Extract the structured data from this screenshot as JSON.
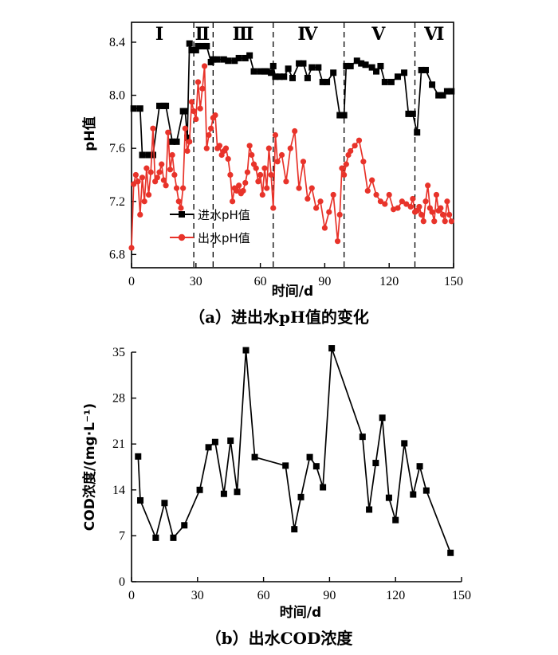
{
  "chart_data": [
    {
      "type": "line",
      "title": "",
      "caption": "（a）进出水pH值的变化",
      "xlabel": "时间/d",
      "ylabel": "pH值",
      "xlim": [
        0,
        150
      ],
      "ylim": [
        6.7,
        8.55
      ],
      "xticks": [
        0,
        30,
        60,
        90,
        120,
        150
      ],
      "yticks": [
        6.8,
        7.2,
        7.6,
        8.0,
        8.4
      ],
      "ytick_labels": [
        "6.8",
        "7.2",
        "7.6",
        "8.0",
        "8.4"
      ],
      "stages": [
        {
          "label": "Ⅰ",
          "center": 13
        },
        {
          "label": "Ⅱ",
          "center": 33
        },
        {
          "label": "Ⅲ",
          "center": 52
        },
        {
          "label": "Ⅳ",
          "center": 82
        },
        {
          "label": "Ⅴ",
          "center": 115
        },
        {
          "label": "Ⅵ",
          "center": 141
        }
      ],
      "dividers": [
        29,
        38,
        66,
        99,
        132
      ],
      "legend": {
        "placement": "lower-left"
      },
      "series": [
        {
          "name": "进水pH值",
          "color": "#000000",
          "marker": "square",
          "x": [
            1,
            4,
            5,
            8,
            10,
            13,
            15,
            16,
            19,
            21,
            24,
            25,
            26,
            27,
            28,
            30,
            31,
            33,
            35,
            37,
            38,
            40,
            43,
            45,
            48,
            50,
            53,
            55,
            57,
            60,
            62,
            63,
            65,
            66,
            67,
            69,
            71,
            73,
            75,
            78,
            80,
            82,
            84,
            87,
            89,
            91,
            94,
            97,
            98,
            99,
            100,
            102,
            105,
            107,
            109,
            112,
            114,
            116,
            118,
            121,
            124,
            127,
            129,
            131,
            133,
            135,
            137,
            140,
            143,
            145,
            147,
            149
          ],
          "y": [
            7.9,
            7.9,
            7.55,
            7.55,
            7.55,
            7.92,
            7.92,
            7.92,
            7.65,
            7.65,
            7.88,
            7.88,
            7.68,
            8.39,
            8.34,
            8.34,
            8.37,
            8.37,
            8.37,
            8.25,
            8.27,
            8.27,
            8.27,
            8.26,
            8.26,
            8.28,
            8.28,
            8.3,
            8.18,
            8.18,
            8.18,
            8.18,
            8.17,
            8.22,
            8.14,
            8.14,
            8.14,
            8.2,
            8.13,
            8.24,
            8.24,
            8.13,
            8.21,
            8.21,
            8.1,
            8.1,
            8.17,
            7.85,
            7.85,
            7.85,
            8.22,
            8.22,
            8.26,
            8.24,
            8.23,
            8.21,
            8.18,
            8.22,
            8.1,
            8.1,
            8.14,
            8.17,
            7.86,
            7.86,
            7.72,
            8.19,
            8.19,
            8.08,
            8.0,
            8.0,
            8.03,
            8.03
          ]
        },
        {
          "name": "出水pH值",
          "color": "#e8332a",
          "marker": "circle",
          "x": [
            0,
            1,
            2,
            3,
            4,
            5,
            6,
            7,
            8,
            9,
            10,
            11,
            12,
            13,
            14,
            15,
            16,
            17,
            18,
            19,
            20,
            21,
            22,
            23,
            24,
            25,
            26,
            27,
            28,
            29,
            30,
            31,
            32,
            33,
            34,
            35,
            36,
            37,
            38,
            39,
            40,
            41,
            42,
            43,
            44,
            45,
            46,
            47,
            48,
            49,
            50,
            51,
            52,
            53,
            54,
            55,
            56,
            57,
            58,
            59,
            60,
            61,
            62,
            63,
            64,
            65,
            66,
            67,
            68,
            70,
            72,
            74,
            76,
            78,
            80,
            82,
            84,
            86,
            88,
            90,
            92,
            94,
            96,
            97,
            98,
            99,
            100,
            101,
            102,
            104,
            106,
            108,
            110,
            112,
            114,
            116,
            118,
            120,
            122,
            124,
            126,
            128,
            130,
            131,
            132,
            133,
            134,
            135,
            136,
            137,
            138,
            139,
            140,
            141,
            142,
            143,
            144,
            145,
            146,
            147,
            148,
            149
          ],
          "y": [
            6.85,
            7.33,
            7.4,
            7.35,
            7.1,
            7.38,
            7.2,
            7.45,
            7.25,
            7.42,
            7.75,
            7.35,
            7.38,
            7.42,
            7.48,
            7.36,
            7.32,
            7.72,
            7.44,
            7.55,
            7.4,
            7.3,
            7.2,
            7.15,
            7.3,
            7.75,
            7.58,
            7.65,
            7.95,
            7.88,
            7.82,
            8.1,
            7.9,
            8.05,
            8.22,
            7.6,
            7.7,
            7.75,
            7.83,
            7.85,
            7.6,
            7.62,
            7.55,
            7.58,
            7.6,
            7.52,
            7.4,
            7.2,
            7.3,
            7.28,
            7.32,
            7.26,
            7.28,
            7.34,
            7.42,
            7.62,
            7.55,
            7.48,
            7.45,
            7.35,
            7.4,
            7.25,
            7.45,
            7.3,
            7.6,
            7.4,
            7.15,
            7.7,
            7.5,
            7.55,
            7.35,
            7.6,
            7.73,
            7.3,
            7.5,
            7.22,
            7.3,
            7.15,
            7.2,
            7.0,
            7.12,
            7.25,
            6.9,
            7.1,
            7.45,
            7.4,
            7.48,
            7.55,
            7.58,
            7.62,
            7.66,
            7.5,
            7.28,
            7.36,
            7.25,
            7.2,
            7.18,
            7.25,
            7.14,
            7.15,
            7.2,
            7.18,
            7.16,
            7.22,
            7.12,
            7.13,
            7.16,
            7.1,
            7.05,
            7.2,
            7.32,
            7.15,
            7.12,
            7.05,
            7.25,
            7.13,
            7.15,
            7.1,
            7.05,
            7.2,
            7.1,
            7.05
          ]
        }
      ]
    },
    {
      "type": "line",
      "title": "",
      "caption": "（b）出水COD浓度",
      "xlabel": "时间/d",
      "ylabel": "COD浓度/(mg·L⁻¹)",
      "xlim": [
        0,
        150
      ],
      "ylim": [
        0,
        35
      ],
      "xticks": [
        0,
        30,
        60,
        90,
        120,
        150
      ],
      "yticks": [
        0,
        7,
        14,
        21,
        28,
        35
      ],
      "series": [
        {
          "name": "出水COD",
          "color": "#000000",
          "marker": "square",
          "x": [
            3,
            4,
            11,
            15,
            19,
            24,
            31,
            35,
            38,
            42,
            45,
            48,
            52,
            56,
            70,
            74,
            77,
            81,
            84,
            87,
            91,
            105,
            108,
            111,
            114,
            117,
            120,
            124,
            128,
            131,
            134,
            145
          ],
          "y": [
            19.1,
            12.4,
            6.7,
            12.0,
            6.7,
            8.6,
            14.0,
            20.5,
            21.3,
            13.4,
            21.5,
            13.7,
            35.3,
            19.0,
            17.7,
            8.0,
            12.9,
            19.0,
            17.6,
            14.4,
            35.6,
            22.1,
            11.0,
            18.1,
            25.0,
            12.8,
            9.4,
            21.1,
            13.3,
            17.6,
            13.9,
            4.4
          ]
        }
      ]
    }
  ]
}
